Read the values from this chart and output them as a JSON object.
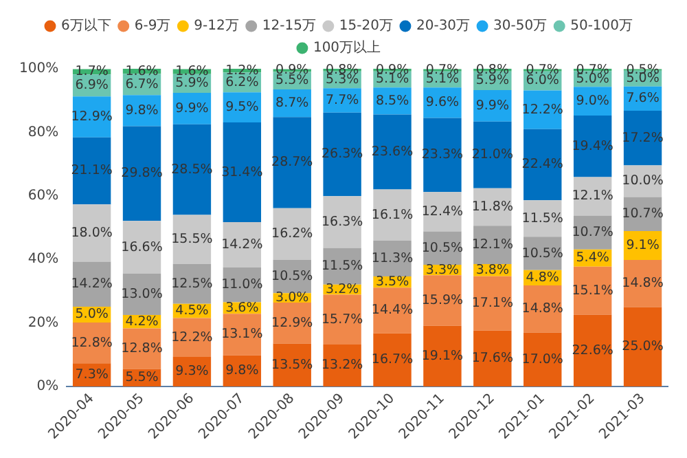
{
  "chart_data": {
    "type": "bar",
    "stacked": true,
    "legend": "top",
    "grid": false,
    "categories": [
      "2020-04",
      "2020-05",
      "2020-06",
      "2020-07",
      "2020-08",
      "2020-09",
      "2020-10",
      "2020-11",
      "2020-12",
      "2021-01",
      "2021-02",
      "2021-03"
    ],
    "ylim": [
      0,
      100
    ],
    "yticks": [
      {
        "value": 0,
        "label": "0%"
      },
      {
        "value": 20,
        "label": "20%"
      },
      {
        "value": 40,
        "label": "40%"
      },
      {
        "value": 60,
        "label": "60%"
      },
      {
        "value": 80,
        "label": "80%"
      },
      {
        "value": 100,
        "label": "100%"
      }
    ],
    "series": [
      {
        "name": "6万以下",
        "color": "#e8600f",
        "values": [
          7.3,
          5.5,
          9.3,
          9.8,
          13.5,
          13.2,
          16.7,
          19.1,
          17.6,
          17.0,
          22.6,
          25.0
        ],
        "value_labels": [
          "7.3%",
          "5.5%",
          "9.3%",
          "9.8%",
          "13.5%",
          "13.2%",
          "16.7%",
          "19.1%",
          "17.6%",
          "17.0%",
          "22.6%",
          "25.0%"
        ]
      },
      {
        "name": "6-9万",
        "color": "#f0884a",
        "values": [
          12.8,
          12.8,
          12.2,
          13.1,
          12.9,
          15.7,
          14.4,
          15.9,
          17.1,
          14.8,
          15.1,
          14.8
        ],
        "value_labels": [
          "12.8%",
          "12.8%",
          "12.2%",
          "13.1%",
          "12.9%",
          "15.7%",
          "14.4%",
          "15.9%",
          "17.1%",
          "14.8%",
          "15.1%",
          "14.8%"
        ]
      },
      {
        "name": "9-12万",
        "color": "#ffc000",
        "values": [
          5.0,
          4.2,
          4.5,
          3.6,
          3.0,
          3.2,
          3.5,
          3.3,
          3.8,
          4.8,
          5.4,
          9.1
        ],
        "value_labels": [
          "5.0%",
          "4.2%",
          "4.5%",
          "3.6%",
          "3.0%",
          "3.2%",
          "3.5%",
          "3.3%",
          "3.8%",
          "4.8%",
          "5.4%",
          "9.1%"
        ]
      },
      {
        "name": "12-15万",
        "color": "#a5a5a5",
        "values": [
          14.2,
          13.0,
          12.5,
          11.0,
          10.5,
          11.5,
          11.3,
          10.5,
          12.1,
          10.5,
          10.7,
          10.7
        ],
        "value_labels": [
          "14.2%",
          "13.0%",
          "12.5%",
          "11.0%",
          "10.5%",
          "11.5%",
          "11.3%",
          "10.5%",
          "12.1%",
          "10.5%",
          "10.7%",
          "10.7%"
        ]
      },
      {
        "name": "15-20万",
        "color": "#c9c9c9",
        "values": [
          18.0,
          16.6,
          15.5,
          14.2,
          16.2,
          16.3,
          16.1,
          12.4,
          11.8,
          11.5,
          12.1,
          10.0
        ],
        "value_labels": [
          "18.0%",
          "16.6%",
          "15.5%",
          "14.2%",
          "16.2%",
          "16.3%",
          "16.1%",
          "12.4%",
          "11.8%",
          "11.5%",
          "12.1%",
          "10.0%"
        ]
      },
      {
        "name": "20-30万",
        "color": "#0070c0",
        "values": [
          21.1,
          29.8,
          28.5,
          31.4,
          28.7,
          26.3,
          23.6,
          23.3,
          21.0,
          22.4,
          19.4,
          17.2
        ],
        "value_labels": [
          "21.1%",
          "29.8%",
          "28.5%",
          "31.4%",
          "28.7%",
          "26.3%",
          "23.6%",
          "23.3%",
          "21.0%",
          "22.4%",
          "19.4%",
          "17.2%"
        ]
      },
      {
        "name": "30-50万",
        "color": "#1ea7f0",
        "values": [
          12.9,
          9.8,
          9.9,
          9.5,
          8.7,
          7.7,
          8.5,
          9.6,
          9.9,
          12.2,
          9.0,
          7.6
        ],
        "value_labels": [
          "12.9%",
          "9.8%",
          "9.9%",
          "9.5%",
          "8.7%",
          "7.7%",
          "8.5%",
          "9.6%",
          "9.9%",
          "12.2%",
          "9.0%",
          "7.6%"
        ]
      },
      {
        "name": "50-100万",
        "color": "#6cc5b0",
        "values": [
          6.9,
          6.7,
          5.9,
          6.2,
          5.5,
          5.3,
          5.1,
          5.1,
          5.9,
          6.0,
          5.0,
          5.0
        ],
        "value_labels": [
          "6.9%",
          "6.7%",
          "5.9%",
          "6.2%",
          "5.5%",
          "5.3%",
          "5.1%",
          "5.1%",
          "5.9%",
          "6.0%",
          "5.0%",
          "5.0%"
        ]
      },
      {
        "name": "100万以上",
        "color": "#3cb371",
        "values": [
          1.7,
          1.6,
          1.6,
          1.2,
          0.9,
          0.8,
          0.9,
          0.7,
          0.8,
          0.7,
          0.7,
          0.5
        ],
        "value_labels": [
          "1.7%",
          "1.6%",
          "1.6%",
          "1.2%",
          "0.9%",
          "0.8%",
          "0.9%",
          "0.7%",
          "0.8%",
          "0.7%",
          "0.7%",
          "0.5%"
        ]
      }
    ]
  }
}
